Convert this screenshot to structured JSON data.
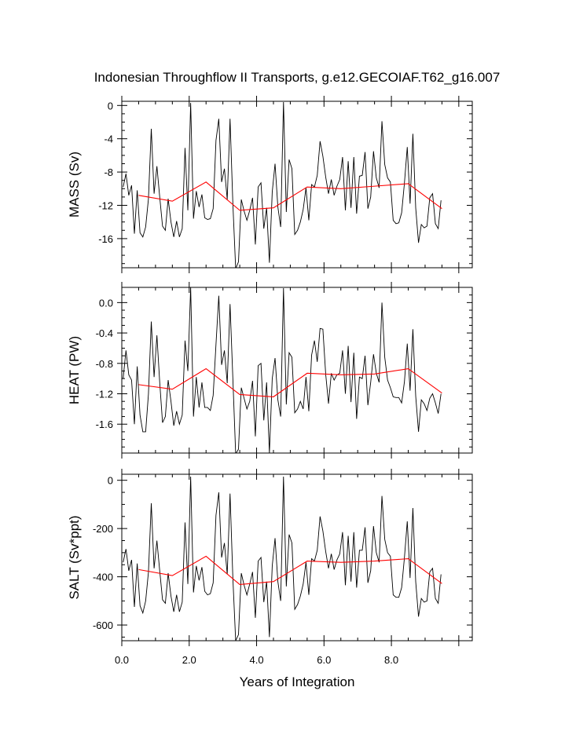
{
  "chart_data": {
    "title": "Indonesian Throughflow II Transports, g.e12.GECOIAF.T62_g16.007",
    "xlabel": "Years of Integration",
    "xlim": [
      0,
      10.4
    ],
    "xticks": [
      0.0,
      2.0,
      4.0,
      6.0,
      8.0
    ],
    "xtick_labels": [
      "0.0",
      "2.0",
      "4.0",
      "6.0",
      "8.0"
    ],
    "series_colors": {
      "monthly": "#000000",
      "annual": "#ff0000"
    },
    "panels": [
      {
        "type": "line",
        "ylabel": "MASS (Sv)",
        "ylim": [
          -19.5,
          0.5
        ],
        "yticks": [
          0,
          -4,
          -8,
          -12,
          -16
        ],
        "ytick_labels": [
          "0",
          "-4",
          "-8",
          "-12",
          "-16"
        ],
        "monthly": [
          -9.8,
          -8.2,
          -10.8,
          -9.6,
          -15.4,
          -10.2,
          -15.3,
          -15.8,
          -14.6,
          -11.2,
          -2.8,
          -10.6,
          -7.3,
          -11.0,
          -14.5,
          -15.0,
          -11.2,
          -14.0,
          -15.8,
          -13.9,
          -15.8,
          -14.8,
          -5.1,
          -12.6,
          0.3,
          -13.6,
          -10.3,
          -12.2,
          -10.7,
          -13.5,
          -13.7,
          -13.6,
          -12.4,
          -4.2,
          -1.6,
          -9.2,
          -7.6,
          -11.3,
          -1.6,
          -11.8,
          -19.6,
          -18.8,
          -11.3,
          -12.7,
          -13.8,
          -12.6,
          -11.1,
          -16.7,
          -9.8,
          -9.3,
          -14.8,
          -12.3,
          -18.9,
          -10.4,
          -7.0,
          -12.2,
          -14.6,
          0.4,
          -12.8,
          -6.5,
          -7.6,
          -15.5,
          -15.0,
          -14.0,
          -12.5,
          -9.9,
          -13.8,
          -9.5,
          -9.8,
          -8.4,
          -4.3,
          -6.1,
          -8.6,
          -10.6,
          -8.9,
          -10.8,
          -9.7,
          -8.9,
          -6.2,
          -12.6,
          -6.7,
          -12.3,
          -6.2,
          -13.0,
          -8.5,
          -8.4,
          -5.6,
          -12.4,
          -11.0,
          -5.5,
          -8.7,
          -9.9,
          -1.9,
          -7.1,
          -8.7,
          -9.2,
          -13.8,
          -14.2,
          -14.1,
          -12.9,
          -9.3,
          -5.0,
          -11.8,
          -3.4,
          -12.3,
          -16.5,
          -14.3,
          -14.7,
          -14.5,
          -11.1,
          -10.6,
          -14.2,
          -14.8,
          -11.4
        ],
        "annual_x": [
          0.5,
          1.5,
          2.5,
          3.5,
          4.5,
          5.5,
          6.5,
          7.5,
          8.5,
          9.5
        ],
        "annual": [
          -10.8,
          -11.5,
          -9.2,
          -12.6,
          -12.3,
          -9.8,
          -10.0,
          -9.7,
          -9.4,
          -12.4
        ]
      },
      {
        "type": "line",
        "ylabel": "HEAT (PW)",
        "ylim": [
          -1.98,
          0.2
        ],
        "yticks": [
          0.0,
          -0.4,
          -0.8,
          -1.2,
          -1.6
        ],
        "ytick_labels": [
          "0.0",
          "-0.4",
          "-0.8",
          "-1.2",
          "-1.6"
        ],
        "monthly": [
          -1.0,
          -0.63,
          -0.95,
          -1.02,
          -1.6,
          -0.84,
          -1.48,
          -1.7,
          -1.7,
          -1.2,
          -0.25,
          -0.98,
          -0.43,
          -1.05,
          -1.58,
          -1.5,
          -1.02,
          -1.3,
          -1.62,
          -1.43,
          -1.6,
          -1.48,
          -0.5,
          -0.9,
          0.2,
          -1.5,
          -0.98,
          -1.38,
          -1.05,
          -1.38,
          -1.38,
          -1.42,
          -1.22,
          -0.55,
          0.09,
          -0.82,
          -0.63,
          -1.06,
          -0.02,
          -1.0,
          -1.99,
          -1.93,
          -1.12,
          -1.26,
          -1.4,
          -1.3,
          -1.03,
          -1.76,
          -0.83,
          -0.8,
          -1.55,
          -1.05,
          -1.98,
          -1.0,
          -0.73,
          -1.28,
          -1.5,
          0.19,
          -1.34,
          -0.66,
          -0.72,
          -1.45,
          -1.4,
          -1.3,
          -1.4,
          -0.98,
          -1.43,
          -0.69,
          -0.5,
          -0.78,
          -0.34,
          -0.35,
          -0.94,
          -1.33,
          -0.93,
          -1.02,
          -0.95,
          -0.93,
          -0.63,
          -1.2,
          -0.57,
          -1.31,
          -0.66,
          -1.53,
          -0.98,
          -1.0,
          -0.7,
          -1.35,
          -1.05,
          -0.68,
          -0.93,
          -1.05,
          0.0,
          -0.72,
          -1.02,
          -1.12,
          -1.24,
          -1.25,
          -1.25,
          -1.32,
          -1.04,
          -0.54,
          -1.16,
          -0.35,
          -1.23,
          -1.7,
          -1.28,
          -1.33,
          -1.42,
          -1.26,
          -1.2,
          -1.32,
          -1.46,
          -1.2
        ],
        "annual_x": [
          0.5,
          1.5,
          2.5,
          3.5,
          4.5,
          5.5,
          6.5,
          7.5,
          8.5,
          9.5
        ],
        "annual": [
          -1.08,
          -1.14,
          -0.87,
          -1.21,
          -1.24,
          -0.93,
          -0.95,
          -0.94,
          -0.87,
          -1.19
        ]
      },
      {
        "type": "line",
        "ylabel": "SALT (Sv*ppt)",
        "ylim": [
          -665,
          25
        ],
        "yticks": [
          0,
          -200,
          -400,
          -600
        ],
        "ytick_labels": [
          "0",
          "-200",
          "-400",
          "-600"
        ],
        "monthly": [
          -340,
          -285,
          -375,
          -330,
          -525,
          -345,
          -520,
          -550,
          -500,
          -380,
          -95,
          -365,
          -250,
          -375,
          -495,
          -510,
          -385,
          -480,
          -545,
          -475,
          -545,
          -505,
          -175,
          -430,
          15,
          -465,
          -355,
          -415,
          -360,
          -460,
          -475,
          -470,
          -425,
          -145,
          -50,
          -320,
          -260,
          -390,
          -55,
          -405,
          -665,
          -640,
          -385,
          -435,
          -475,
          -430,
          -380,
          -570,
          -335,
          -320,
          -505,
          -420,
          -650,
          -355,
          -240,
          -420,
          -500,
          15,
          -440,
          -225,
          -260,
          -535,
          -515,
          -480,
          -430,
          -340,
          -475,
          -325,
          -335,
          -290,
          -150,
          -210,
          -295,
          -365,
          -305,
          -370,
          -330,
          -305,
          -215,
          -435,
          -230,
          -420,
          -215,
          -445,
          -290,
          -290,
          -195,
          -425,
          -375,
          -190,
          -300,
          -340,
          -65,
          -245,
          -300,
          -315,
          -475,
          -485,
          -485,
          -445,
          -320,
          -170,
          -405,
          -115,
          -420,
          -565,
          -490,
          -505,
          -500,
          -380,
          -365,
          -490,
          -510,
          -390
        ],
        "annual_x": [
          0.5,
          1.5,
          2.5,
          3.5,
          4.5,
          5.5,
          6.5,
          7.5,
          8.5,
          9.5
        ],
        "annual": [
          -370,
          -395,
          -315,
          -432,
          -420,
          -335,
          -340,
          -335,
          -325,
          -428
        ]
      }
    ]
  }
}
